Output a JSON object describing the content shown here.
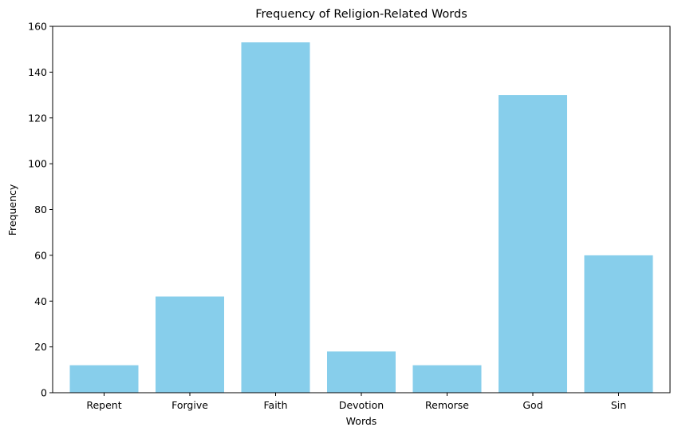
{
  "chart_data": {
    "type": "bar",
    "title": "Frequency of Religion-Related Words",
    "xlabel": "Words",
    "ylabel": "Frequency",
    "categories": [
      "Repent",
      "Forgive",
      "Faith",
      "Devotion",
      "Remorse",
      "God",
      "Sin"
    ],
    "values": [
      12,
      42,
      153,
      18,
      12,
      130,
      60
    ],
    "ylim": [
      0,
      160
    ],
    "yticks": [
      "0",
      "20",
      "40",
      "60",
      "80",
      "100",
      "120",
      "140",
      "160"
    ],
    "bar_color": "#87ceeb",
    "grid": false,
    "legend": "none"
  }
}
